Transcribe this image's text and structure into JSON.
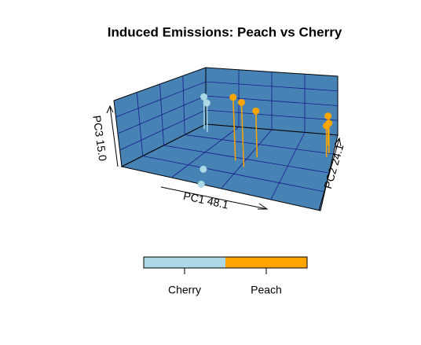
{
  "chart_data": {
    "type": "scatter3d",
    "title": "Induced Emissions: Peach vs Cherry",
    "xlabel": "PC1 48.1",
    "ylabel": "PC2 24.1",
    "zlabel": "PC3 15.0",
    "grid": true,
    "series": [
      {
        "name": "Cherry",
        "color": "#add8e6",
        "x": [
          0.05,
          0.1,
          0.35,
          0.4
        ],
        "y": [
          0.9,
          0.85,
          0.2,
          0.0
        ],
        "z": [
          0.56,
          0.5,
          0.03,
          0.0
        ]
      },
      {
        "name": "Peach",
        "color": "#ffa500",
        "x": [
          0.45,
          0.52,
          0.55,
          0.95,
          0.97,
          0.96
        ],
        "y": [
          0.45,
          0.38,
          0.55,
          0.85,
          0.75,
          0.7
        ],
        "z": [
          1.0,
          1.0,
          0.74,
          0.49,
          0.49,
          0.5
        ]
      }
    ]
  }
}
